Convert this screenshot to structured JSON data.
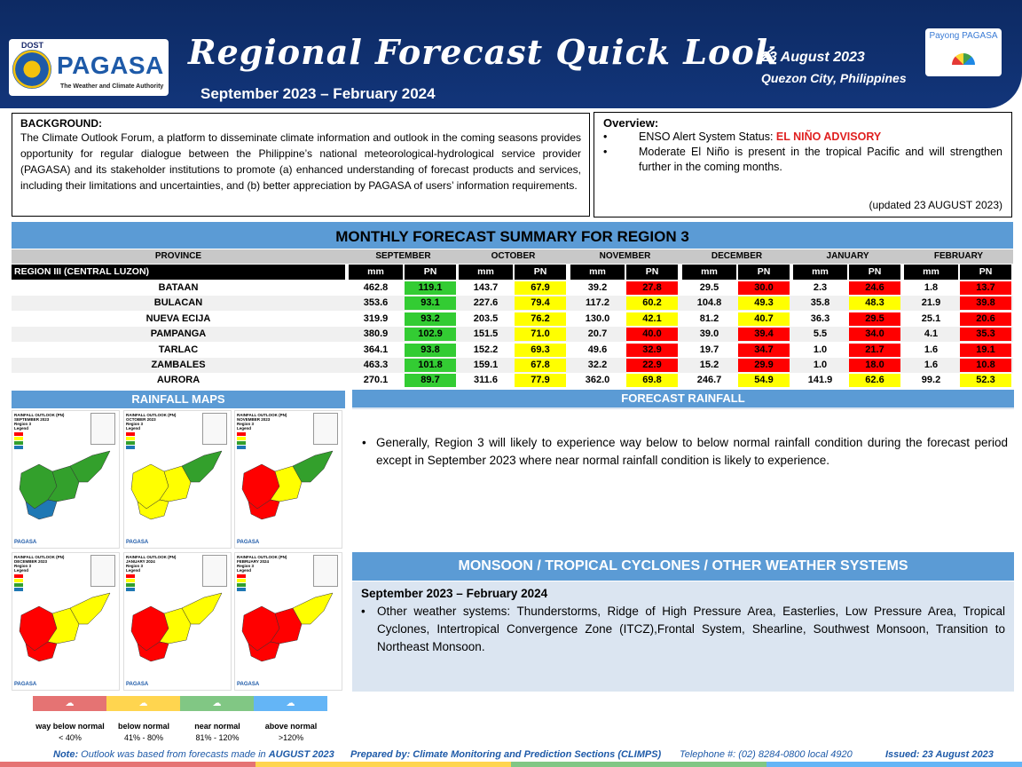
{
  "header": {
    "dost": "DOST",
    "agency": "PAGASA",
    "authority": "The Weather and Climate Authority",
    "title": "Regional Forecast Quick Look",
    "period": "September 2023 – February 2024",
    "date": "23 August 2023",
    "place": "Quezon City, Philippines",
    "payong": "Payong PAGASA"
  },
  "background": {
    "title": "BACKGROUND:",
    "text": "The Climate Outlook Forum, a platform to disseminate climate information and outlook in the coming seasons provides opportunity for regular dialogue between the Philippine’s national meteorological-hydrological service provider (PAGASA) and its stakeholder institutions to promote (a) enhanced understanding of forecast products and services, including their limitations and uncertainties, and (b) better appreciation by PAGASA of users’ information requirements."
  },
  "overview": {
    "title": "Overview:",
    "enso_label": "ENSO Alert System Status: ",
    "enso_status": "EL NIÑO ADVISORY",
    "item2": "Moderate El Niño is present in the tropical Pacific and will strengthen further in the coming months.",
    "updated": "(updated 23 AUGUST 2023)"
  },
  "summary": {
    "title": "MONTHLY FORECAST SUMMARY FOR REGION 3",
    "province_header": "PROVINCE",
    "region_label": "REGION III (CENTRAL LUZON)",
    "mm_label": "mm",
    "pn_label": "PN",
    "months": [
      "SEPTEMBER",
      "OCTOBER",
      "NOVEMBER",
      "DECEMBER",
      "JANUARY",
      "FEBRUARY"
    ],
    "colors": {
      "near": "#33cc33",
      "below": "#ffff00",
      "way_below": "#ff0000",
      "above": "#0070c0"
    },
    "rows": [
      {
        "province": "BATAAN",
        "mm": [
          "462.8",
          "143.7",
          "39.2",
          "29.5",
          "2.3",
          "1.8"
        ],
        "pn": [
          "119.1",
          "67.9",
          "27.8",
          "30.0",
          "24.6",
          "13.7"
        ],
        "cat": [
          "near",
          "below",
          "way_below",
          "way_below",
          "way_below",
          "way_below"
        ]
      },
      {
        "province": "BULACAN",
        "mm": [
          "353.6",
          "227.6",
          "117.2",
          "104.8",
          "35.8",
          "21.9"
        ],
        "pn": [
          "93.1",
          "79.4",
          "60.2",
          "49.3",
          "48.3",
          "39.8"
        ],
        "cat": [
          "near",
          "below",
          "below",
          "below",
          "below",
          "way_below"
        ]
      },
      {
        "province": "NUEVA ECIJA",
        "mm": [
          "319.9",
          "203.5",
          "130.0",
          "81.2",
          "36.3",
          "25.1"
        ],
        "pn": [
          "93.2",
          "76.2",
          "42.1",
          "40.7",
          "29.5",
          "20.6"
        ],
        "cat": [
          "near",
          "below",
          "below",
          "below",
          "way_below",
          "way_below"
        ]
      },
      {
        "province": "PAMPANGA",
        "mm": [
          "380.9",
          "151.5",
          "20.7",
          "39.0",
          "5.5",
          "4.1"
        ],
        "pn": [
          "102.9",
          "71.0",
          "40.0",
          "39.4",
          "34.0",
          "35.3"
        ],
        "cat": [
          "near",
          "below",
          "way_below",
          "way_below",
          "way_below",
          "way_below"
        ]
      },
      {
        "province": "TARLAC",
        "mm": [
          "364.1",
          "152.2",
          "49.6",
          "19.7",
          "1.0",
          "1.6"
        ],
        "pn": [
          "93.8",
          "69.3",
          "32.9",
          "34.7",
          "21.7",
          "19.1"
        ],
        "cat": [
          "near",
          "below",
          "way_below",
          "way_below",
          "way_below",
          "way_below"
        ]
      },
      {
        "province": "ZAMBALES",
        "mm": [
          "463.3",
          "159.1",
          "32.2",
          "15.2",
          "1.0",
          "1.6"
        ],
        "pn": [
          "101.8",
          "67.8",
          "22.9",
          "29.9",
          "18.0",
          "10.8"
        ],
        "cat": [
          "near",
          "below",
          "way_below",
          "way_below",
          "way_below",
          "way_below"
        ]
      },
      {
        "province": "AURORA",
        "mm": [
          "270.1",
          "311.6",
          "362.0",
          "246.7",
          "141.9",
          "99.2"
        ],
        "pn": [
          "89.7",
          "77.9",
          "69.8",
          "54.9",
          "62.6",
          "52.3"
        ],
        "cat": [
          "near",
          "below",
          "below",
          "below",
          "below",
          "below"
        ]
      }
    ]
  },
  "maps": {
    "title": "RAINFALL MAPS",
    "outlook_label": "RAINFALL OUTLOOK (PN)",
    "region_label": "Region 3",
    "legend_label": "Legend",
    "panels": [
      {
        "month": "SEPTEMBER 2023"
      },
      {
        "month": "OCTOBER 2023"
      },
      {
        "month": "NOVEMBER 2023"
      },
      {
        "month": "DECEMBER 2023"
      },
      {
        "month": "JANUARY 2024"
      },
      {
        "month": "FEBRUARY 2024"
      }
    ],
    "legend": [
      {
        "label": "way below normal",
        "range": "< 40%",
        "color": "#e57373"
      },
      {
        "label": "below normal",
        "range": "41% -  80%",
        "color": "#ffd54f"
      },
      {
        "label": "near normal",
        "range": "81% - 120%",
        "color": "#81c784"
      },
      {
        "label": "above normal",
        "range": ">120%",
        "color": "#64b5f6"
      }
    ]
  },
  "forecast": {
    "title": "FORECAST RAINFALL",
    "text": "Generally, Region 3 will likely to experience way below to below normal rainfall condition during the forecast period except in September 2023 where near normal rainfall condition is likely to experience."
  },
  "monsoon": {
    "title": "MONSOON / TROPICAL CYCLONES / OTHER WEATHER SYSTEMS",
    "period": "September 2023 – February 2024",
    "text": "Other weather systems: Thunderstorms,  Ridge of High Pressure Area,  Easterlies, Low Pressure Area, Tropical Cyclones, Intertropical Convergence Zone (ITCZ),Frontal System, Shearline, Southwest Monsoon, Transition to Northeast Monsoon."
  },
  "footer": {
    "note_label": "Note:",
    "note_text": " Outlook was based from forecasts made in ",
    "note_month": "AUGUST 2023",
    "prepared": "Prepared by: Climate Monitoring and Prediction Sections (CLIMPS)",
    "telephone": "Telephone #: (02) 8284-0800 local 4920",
    "issued": "Issued: 23 August 2023"
  }
}
